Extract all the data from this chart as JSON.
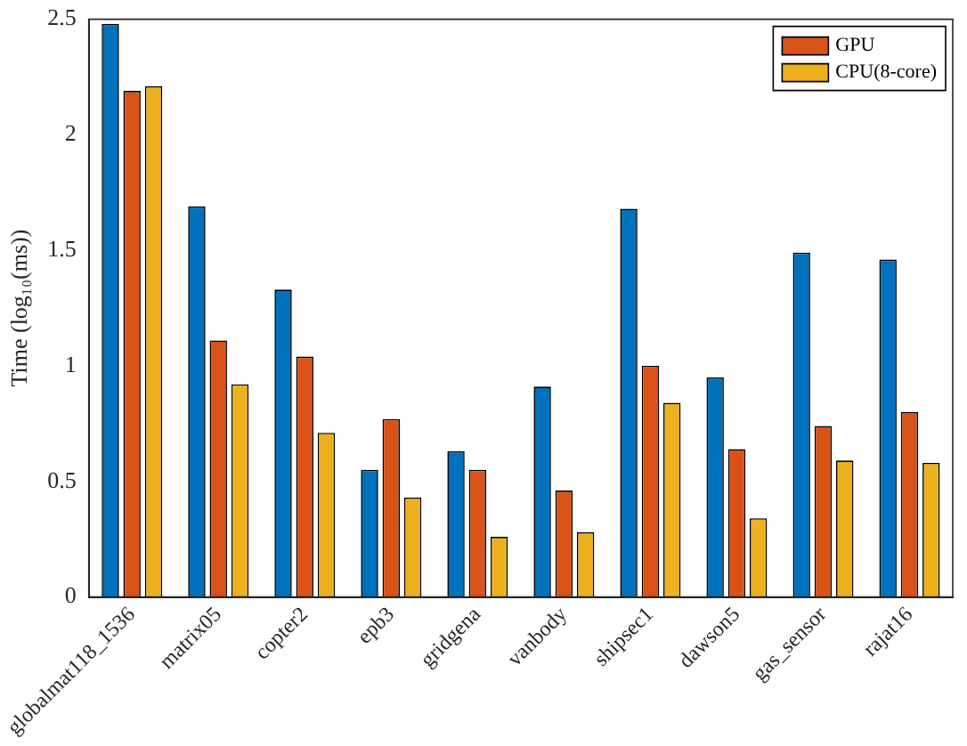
{
  "chart_data": {
    "type": "bar",
    "ylabel": "Time (log₁₀(ms))",
    "categories": [
      "globalmat118_1536",
      "matrix05",
      "copter2",
      "epb3",
      "gridgena",
      "vanbody",
      "shipsec1",
      "dawson5",
      "gas_sensor",
      "rajat16"
    ],
    "series": [
      {
        "color": "#0072bd",
        "values": [
          2.48,
          1.69,
          1.33,
          0.55,
          0.63,
          0.91,
          1.68,
          0.95,
          1.49,
          1.46
        ]
      },
      {
        "name": "GPU",
        "color": "#d95319",
        "values": [
          2.19,
          1.11,
          1.04,
          0.77,
          0.55,
          0.46,
          1.0,
          0.64,
          0.74,
          0.8
        ]
      },
      {
        "name": "CPU(8-core)",
        "color": "#edb120",
        "values": [
          2.21,
          0.92,
          0.71,
          0.43,
          0.26,
          0.28,
          0.84,
          0.34,
          0.59,
          0.58
        ]
      }
    ],
    "ylim": [
      0,
      2.5
    ],
    "yticks": [
      0,
      0.5,
      1,
      1.5,
      2,
      2.5
    ],
    "grid": false,
    "legend": "top right"
  }
}
